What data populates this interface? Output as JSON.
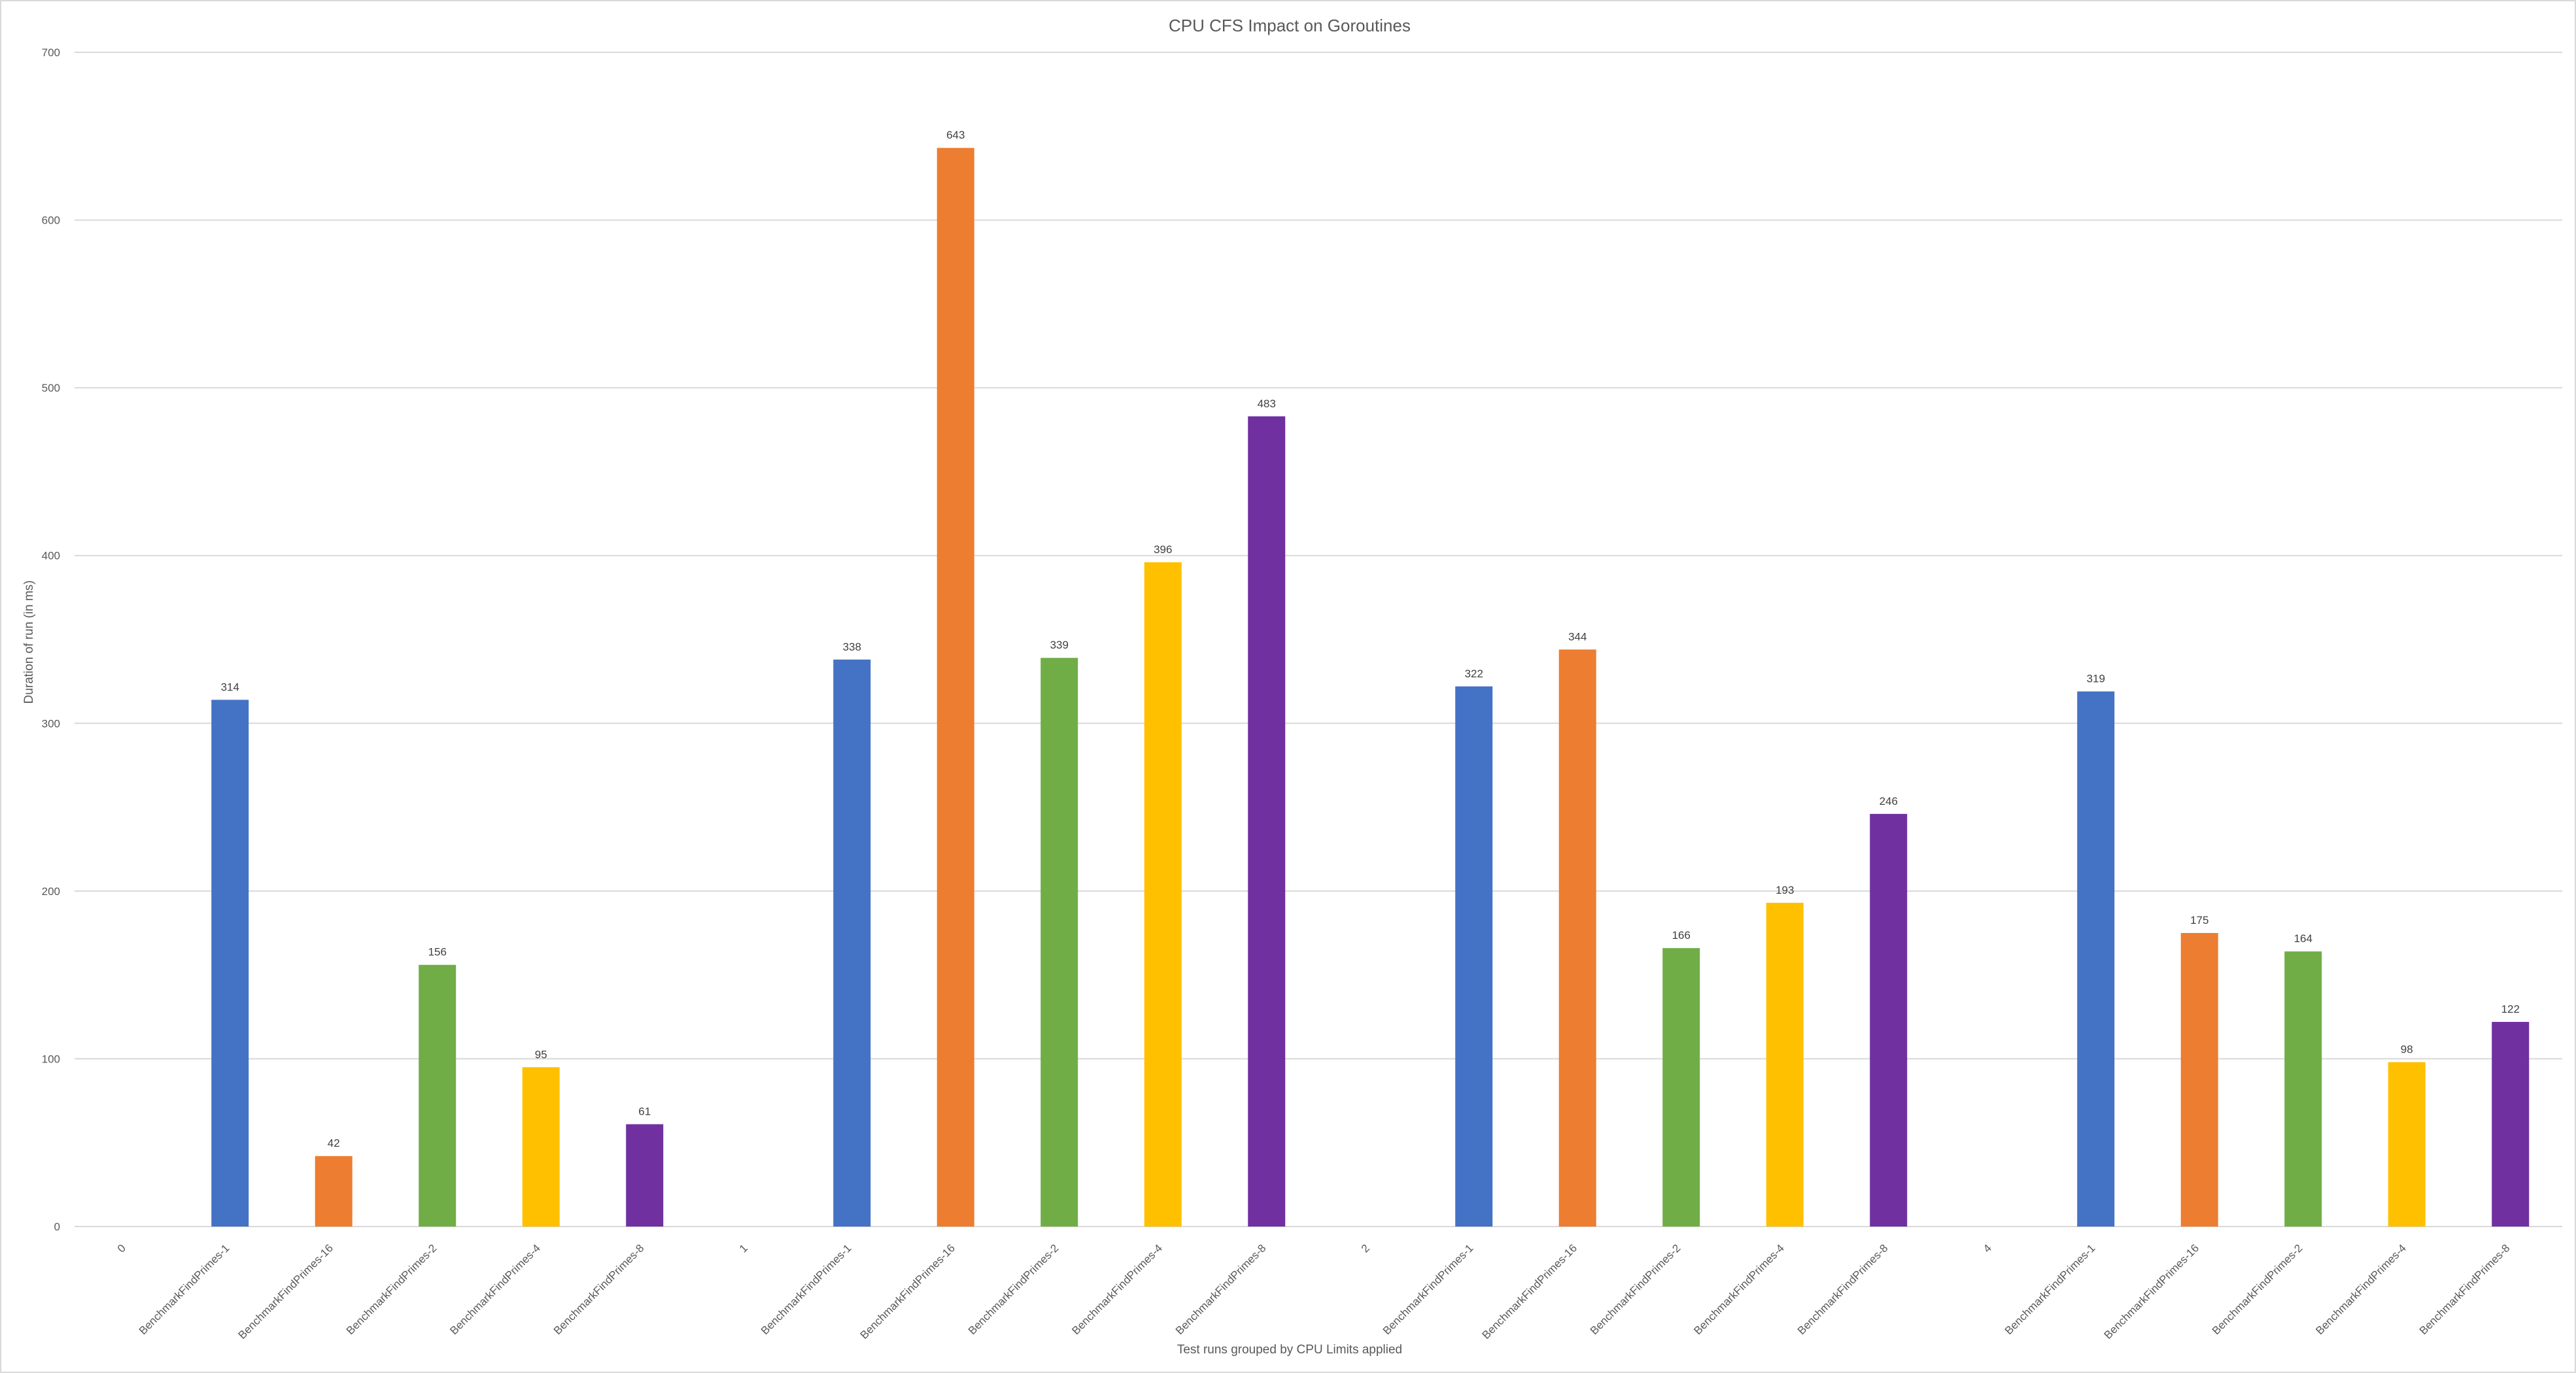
{
  "chart_data": {
    "type": "bar",
    "title": "CPU CFS Impact on Goroutines",
    "xlabel": "Test runs grouped by CPU Limits applied",
    "ylabel": "Duration of run (in ms)",
    "ylim": [
      0,
      700
    ],
    "yticks": [
      0,
      100,
      200,
      300,
      400,
      500,
      600,
      700
    ],
    "grid": true,
    "categories": [
      "0",
      "BenchmarkFindPrimes-1",
      "BenchmarkFindPrimes-16",
      "BenchmarkFindPrimes-2",
      "BenchmarkFindPrimes-4",
      "BenchmarkFindPrimes-8",
      "1",
      "BenchmarkFindPrimes-1",
      "BenchmarkFindPrimes-16",
      "BenchmarkFindPrimes-2",
      "BenchmarkFindPrimes-4",
      "BenchmarkFindPrimes-8",
      "2",
      "BenchmarkFindPrimes-1",
      "BenchmarkFindPrimes-16",
      "BenchmarkFindPrimes-2",
      "BenchmarkFindPrimes-4",
      "BenchmarkFindPrimes-8",
      "4",
      "BenchmarkFindPrimes-1",
      "BenchmarkFindPrimes-16",
      "BenchmarkFindPrimes-2",
      "BenchmarkFindPrimes-4",
      "BenchmarkFindPrimes-8"
    ],
    "values": [
      null,
      314,
      42,
      156,
      95,
      61,
      null,
      338,
      643,
      339,
      396,
      483,
      null,
      322,
      344,
      166,
      193,
      246,
      null,
      319,
      175,
      164,
      98,
      122
    ],
    "data_labels": [
      "",
      "314",
      "42",
      "156",
      "95",
      "61",
      "",
      "338",
      "643",
      "339",
      "396",
      "483",
      "",
      "322",
      "344",
      "166",
      "193",
      "246",
      "",
      "319",
      "175",
      "164",
      "98",
      "122"
    ],
    "colors": [
      "",
      "#4472c4",
      "#ed7d31",
      "#70ad47",
      "#ffc000",
      "#7030a0",
      "",
      "#4472c4",
      "#ed7d31",
      "#70ad47",
      "#ffc000",
      "#7030a0",
      "",
      "#4472c4",
      "#ed7d31",
      "#70ad47",
      "#ffc000",
      "#7030a0",
      "",
      "#4472c4",
      "#ed7d31",
      "#70ad47",
      "#ffc000",
      "#7030a0"
    ]
  }
}
